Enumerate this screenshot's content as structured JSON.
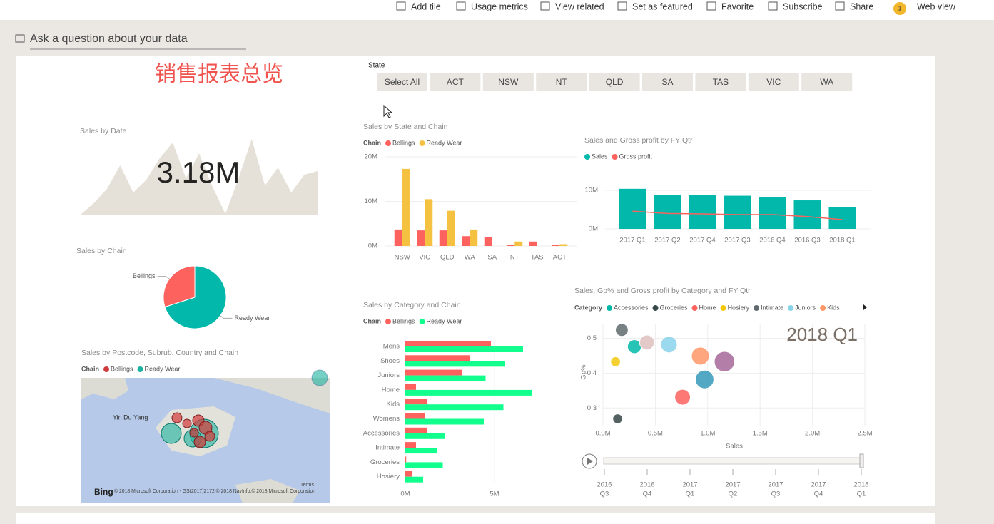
{
  "toolbar": {
    "items": [
      "Add tile",
      "Usage metrics",
      "View related",
      "Set as featured",
      "Favorite",
      "Subscribe",
      "Share"
    ],
    "notification_count": 1,
    "view": "Web view"
  },
  "qa_prompt": "Ask a question about your data",
  "report_title": "销售报表总览",
  "slicer": {
    "label": "State",
    "options": [
      "Select All",
      "ACT",
      "NSW",
      "NT",
      "QLD",
      "SA",
      "TAS",
      "VIC",
      "WA"
    ]
  },
  "sales_by_date": {
    "type": "area",
    "title": "Sales by Date",
    "value_label": "3.18M",
    "color": "#e6e1d8",
    "values": [
      0,
      16,
      36,
      69,
      31,
      49,
      79,
      101,
      51,
      86,
      40,
      1,
      51,
      106,
      41,
      66,
      31,
      56,
      61
    ]
  },
  "sales_by_chain": {
    "type": "pie",
    "title": "Sales by Chain",
    "categories": [
      "Bellings",
      "Ready Wear"
    ],
    "values": [
      30,
      70
    ],
    "colors": [
      "#fd625e",
      "#01b8aa"
    ]
  },
  "sales_by_state_chain": {
    "type": "bar",
    "title": "Sales by State and Chain",
    "legend_title": "Chain",
    "categories": [
      "NSW",
      "VIC",
      "QLD",
      "WA",
      "SA",
      "NT",
      "TAS",
      "ACT"
    ],
    "series": [
      {
        "name": "Bellings",
        "color": "#fd625e",
        "values": [
          3.7,
          3.5,
          3.5,
          2.2,
          2.0,
          0.2,
          1.0,
          0.2
        ]
      },
      {
        "name": "Ready Wear",
        "color": "#f5c141",
        "values": [
          17.3,
          10.5,
          7.9,
          3.7,
          0,
          1.0,
          0,
          0.4
        ]
      }
    ],
    "ylim": [
      0,
      20
    ],
    "yticks": [
      {
        "value": 0,
        "label": "0M"
      },
      {
        "value": 10,
        "label": "10M"
      },
      {
        "value": 20,
        "label": "20M"
      }
    ],
    "grid": true
  },
  "sales_gp_by_qtr": {
    "type": "bar_line",
    "title": "Sales and Gross profit by FY Qtr",
    "categories": [
      "2017 Q1",
      "2017 Q2",
      "2017 Q4",
      "2017 Q3",
      "2016 Q4",
      "2016 Q3",
      "2018 Q1"
    ],
    "series": [
      {
        "name": "Sales",
        "color": "#01b8aa",
        "values": [
          10.4,
          8.7,
          8.7,
          8.6,
          8.3,
          7.4,
          5.6
        ]
      },
      {
        "name": "Gross profit",
        "color": "#fd625e",
        "values": [
          4.6,
          4.0,
          3.9,
          3.7,
          3.7,
          3.2,
          2.4
        ]
      }
    ],
    "ylim": [
      0,
      11
    ],
    "yticks": [
      {
        "value": 0,
        "label": "0M"
      },
      {
        "value": 10,
        "label": "10M"
      }
    ],
    "grid": true
  },
  "sales_by_category_chain": {
    "type": "hbar",
    "title": "Sales by Category and Chain",
    "legend_title": "Chain",
    "categories": [
      "Mens",
      "Shoes",
      "Juniors",
      "Home",
      "Kids",
      "Womens",
      "Accessories",
      "Intimate",
      "Groceries",
      "Hosiery"
    ],
    "series": [
      {
        "name": "Bellings",
        "color": "#fd625e",
        "values": [
          4.8,
          3.6,
          3.2,
          0.6,
          1.2,
          1.1,
          1.2,
          0.6,
          0.05,
          0.4
        ]
      },
      {
        "name": "Ready Wear",
        "color": "#12ff8e",
        "values": [
          6.6,
          5.6,
          4.5,
          7.1,
          5.5,
          4.4,
          2.2,
          1.8,
          2.1,
          1.0
        ]
      }
    ],
    "xlim": [
      0,
      7.5
    ],
    "xticks": [
      {
        "value": 0,
        "label": "0M"
      },
      {
        "value": 5,
        "label": "5M"
      }
    ]
  },
  "sales_by_postcode": {
    "type": "map",
    "title": "Sales by Postcode, Subrub, Country and Chain",
    "legend_title": "Chain",
    "legend": [
      {
        "name": "Bellings",
        "color": "#d13b3b"
      },
      {
        "name": "Ready Wear",
        "color": "#1ab39f"
      }
    ],
    "map_label": "Yin Du Yang",
    "logo": "Bing",
    "terms": "Terms",
    "attribution": "© 2018 Microsoft Corporation - GS(2017)2172,© 2018 NavInfo,© 2018 Microsoft Corporation"
  },
  "scatter": {
    "type": "scatter",
    "title": "Sales, Gp% and Gross profit by Category and FY Qtr",
    "legend_title": "Category",
    "series": [
      {
        "name": "Accessories",
        "color": "#01b8aa",
        "x": [
          0.3
        ],
        "values": [
          0.476
        ],
        "sizes": [
          0.4
        ]
      },
      {
        "name": "Groceries",
        "color": "#374649",
        "x": [
          0.14
        ],
        "values": [
          0.269
        ],
        "sizes": [
          0.1
        ]
      },
      {
        "name": "Home",
        "color": "#fd625e",
        "x": [
          0.76
        ],
        "values": [
          0.331
        ],
        "sizes": [
          0.6
        ]
      },
      {
        "name": "Hosiery",
        "color": "#f2c80f",
        "x": [
          0.12
        ],
        "values": [
          0.433
        ],
        "sizes": [
          0.1
        ]
      },
      {
        "name": "Intimate",
        "color": "#5f6b6d",
        "x": [
          0.18
        ],
        "values": [
          0.524
        ],
        "sizes": [
          0.3
        ]
      },
      {
        "name": "Juniors",
        "color": "#8ad4eb",
        "x": [
          0.63
        ],
        "values": [
          0.482
        ],
        "sizes": [
          0.7
        ]
      },
      {
        "name": "Kids",
        "color": "#fe9666",
        "x": [
          0.93
        ],
        "values": [
          0.449
        ],
        "sizes": [
          0.9
        ]
      },
      {
        "color": "#a66999",
        "x": [
          1.16
        ],
        "values": [
          0.433
        ],
        "sizes": [
          1.3
        ]
      },
      {
        "color": "#3599b8",
        "x": [
          0.97
        ],
        "values": [
          0.382
        ],
        "sizes": [
          1.0
        ]
      },
      {
        "color": "#dfbfbf",
        "x": [
          0.42
        ],
        "values": [
          0.488
        ],
        "sizes": [
          0.5
        ]
      }
    ],
    "xlim": [
      0,
      2.5
    ],
    "xticks": [
      {
        "value": 0,
        "label": "0.0M"
      },
      {
        "value": 0.5,
        "label": "0.5M"
      },
      {
        "value": 1,
        "label": "1.0M"
      },
      {
        "value": 1.5,
        "label": "1.5M"
      },
      {
        "value": 2,
        "label": "2.0M"
      },
      {
        "value": 2.5,
        "label": "2.5M"
      }
    ],
    "ylim": [
      0.233,
      0.54
    ],
    "yticks": [
      0.3,
      0.4,
      0.5
    ],
    "grid": true,
    "xlabel": "Sales",
    "ylabel": "Gp%",
    "frame_label": "2018 Q1",
    "play_axis": [
      [
        "2016",
        "Q3"
      ],
      [
        "2016",
        "Q4"
      ],
      [
        "2017",
        "Q1"
      ],
      [
        "2017",
        "Q2"
      ],
      [
        "2017",
        "Q3"
      ],
      [
        "2017",
        "Q4"
      ],
      [
        "2018",
        "Q1"
      ]
    ]
  }
}
